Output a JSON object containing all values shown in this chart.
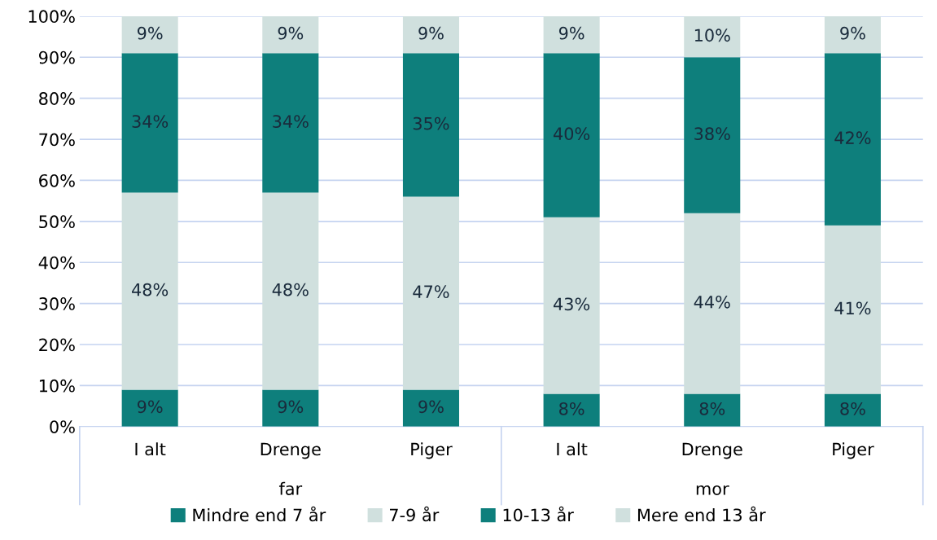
{
  "chart_data": {
    "type": "bar",
    "stacked": true,
    "categories": [
      "I alt",
      "Drenge",
      "Piger",
      "I alt",
      "Drenge",
      "Piger"
    ],
    "annotations": [
      "far",
      "mor"
    ],
    "series": [
      {
        "name": "Mindre end 7 år",
        "color": "#0e7f7c",
        "values": [
          9,
          9,
          9,
          8,
          8,
          8
        ],
        "value_labels": [
          "9%",
          "9%",
          "9%",
          "8%",
          "8%",
          "8%"
        ]
      },
      {
        "name": "7-9 år",
        "color": "#d0e0de",
        "values": [
          48,
          48,
          47,
          43,
          44,
          41
        ],
        "value_labels": [
          "48%",
          "48%",
          "47%",
          "43%",
          "44%",
          "41%"
        ]
      },
      {
        "name": "10-13 år",
        "color": "#0e7f7c",
        "values": [
          34,
          34,
          35,
          40,
          38,
          42
        ],
        "value_labels": [
          "34%",
          "34%",
          "35%",
          "40%",
          "38%",
          "42%"
        ]
      },
      {
        "name": "Mere end 13 år",
        "color": "#d0e0de",
        "values": [
          9,
          9,
          9,
          9,
          10,
          9
        ],
        "value_labels": [
          "9%",
          "9%",
          "9%",
          "9%",
          "10%",
          "9%"
        ]
      }
    ],
    "ylim": [
      0,
      100
    ],
    "yticks": [
      {
        "value": 0,
        "label": "0%"
      },
      {
        "value": 10,
        "label": "10%"
      },
      {
        "value": 20,
        "label": "20%"
      },
      {
        "value": 30,
        "label": "30%"
      },
      {
        "value": 40,
        "label": "40%"
      },
      {
        "value": 50,
        "label": "50%"
      },
      {
        "value": 60,
        "label": "60%"
      },
      {
        "value": 70,
        "label": "70%"
      },
      {
        "value": 80,
        "label": "80%"
      },
      {
        "value": 90,
        "label": "90%"
      },
      {
        "value": 100,
        "label": "100%"
      }
    ],
    "grid": "y",
    "legend": "bottom"
  }
}
